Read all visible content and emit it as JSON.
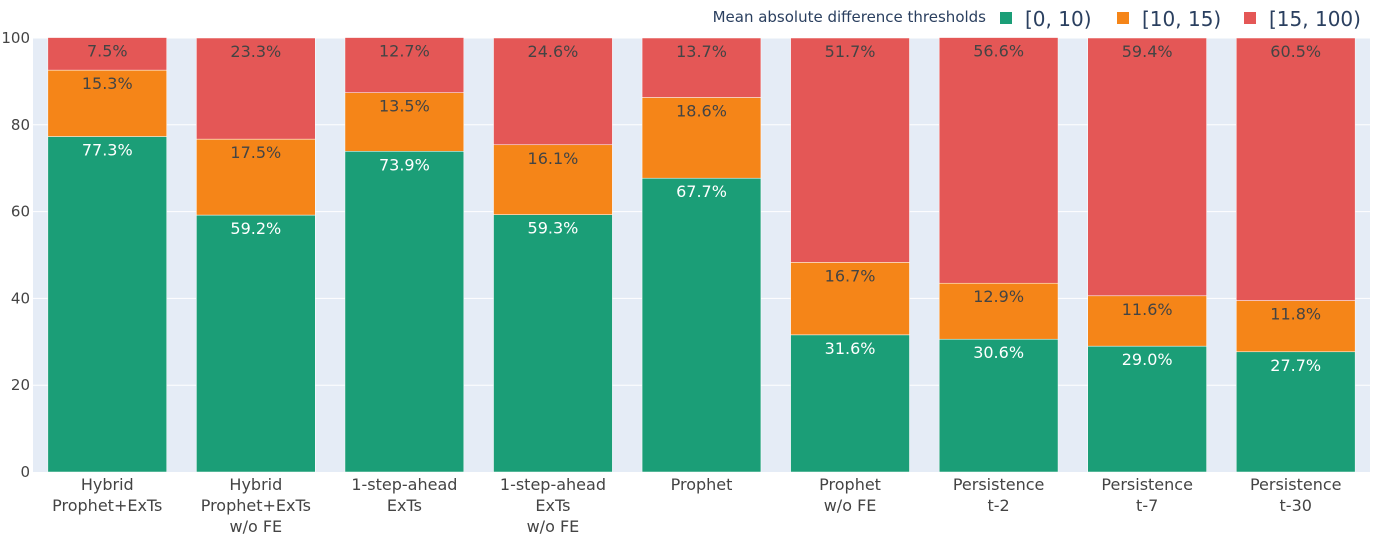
{
  "chart_data": {
    "type": "bar",
    "stacked": true,
    "title": "",
    "xlabel": "",
    "ylabel": "",
    "ylim": [
      0,
      100
    ],
    "yticks": [
      0,
      20,
      40,
      60,
      80,
      100
    ],
    "grid": true,
    "legend": {
      "title": "Mean absolute difference thresholds",
      "placement": "top-right"
    },
    "categories": [
      [
        "Hybrid",
        "Prophet+ExTs"
      ],
      [
        "Hybrid",
        "Prophet+ExTs",
        "w/o FE"
      ],
      [
        "1-step-ahead",
        "ExTs"
      ],
      [
        "1-step-ahead",
        "ExTs",
        "w/o FE"
      ],
      [
        "Prophet"
      ],
      [
        "Prophet",
        "w/o FE"
      ],
      [
        "Persistence",
        "t-2"
      ],
      [
        "Persistence",
        "t-7"
      ],
      [
        "Persistence",
        "t-30"
      ]
    ],
    "series": [
      {
        "name": "[0, 10)",
        "color": "#1b9e77",
        "label_color": "#ffffff",
        "values": [
          77.3,
          59.2,
          73.9,
          59.3,
          67.7,
          31.6,
          30.6,
          29.0,
          27.7
        ],
        "labels": [
          "77.3%",
          "59.2%",
          "73.9%",
          "59.3%",
          "67.7%",
          "31.6%",
          "30.6%",
          "29.0%",
          "27.7%"
        ]
      },
      {
        "name": "[10, 15)",
        "color": "#f58518",
        "label_color": "#444444",
        "values": [
          15.3,
          17.5,
          13.5,
          16.1,
          18.6,
          16.7,
          12.9,
          11.6,
          11.8
        ],
        "labels": [
          "15.3%",
          "17.5%",
          "13.5%",
          "16.1%",
          "18.6%",
          "16.7%",
          "12.9%",
          "11.6%",
          "11.8%"
        ]
      },
      {
        "name": "[15, 100)",
        "color": "#e45756",
        "label_color": "#444444",
        "values": [
          7.5,
          23.3,
          12.7,
          24.6,
          13.7,
          51.7,
          56.6,
          59.4,
          60.5
        ],
        "labels": [
          "7.5%",
          "23.3%",
          "12.7%",
          "24.6%",
          "13.7%",
          "51.7%",
          "56.6%",
          "59.4%",
          "60.5%"
        ]
      }
    ]
  }
}
